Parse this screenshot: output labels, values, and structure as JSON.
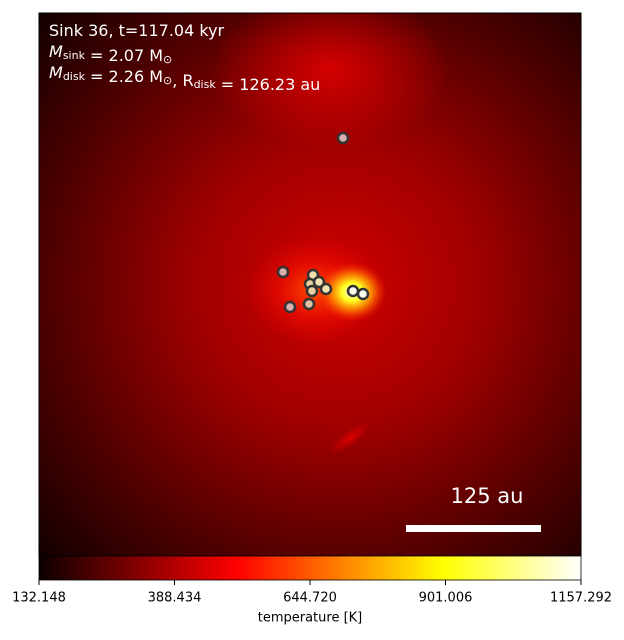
{
  "chart_data": {
    "type": "image",
    "annotations": [
      [
        {
          "text": "Sink 36, t=117.04 kyr"
        }
      ],
      [
        {
          "text": "M"
        },
        {
          "sub": "sink"
        },
        {
          "text": " = 2.07 M"
        },
        {
          "sub": "⊙"
        }
      ],
      [
        {
          "text": "M"
        },
        {
          "sub": "disk"
        },
        {
          "text": " = 2.26 M"
        },
        {
          "sub": "⊙"
        },
        {
          "text": ", R"
        },
        {
          "sub": "disk"
        },
        {
          "text": " = 126.23 au"
        }
      ]
    ],
    "scale_bar_label": "125 au",
    "colorbar": {
      "label": "temperature [K]",
      "colormap": "hot",
      "clim": [
        132.148,
        1157.292
      ],
      "ticks": [
        132.148,
        388.434,
        {
          "value": 644.72,
          "label": "644.720"
        },
        901.006,
        1157.292
      ]
    }
  }
}
